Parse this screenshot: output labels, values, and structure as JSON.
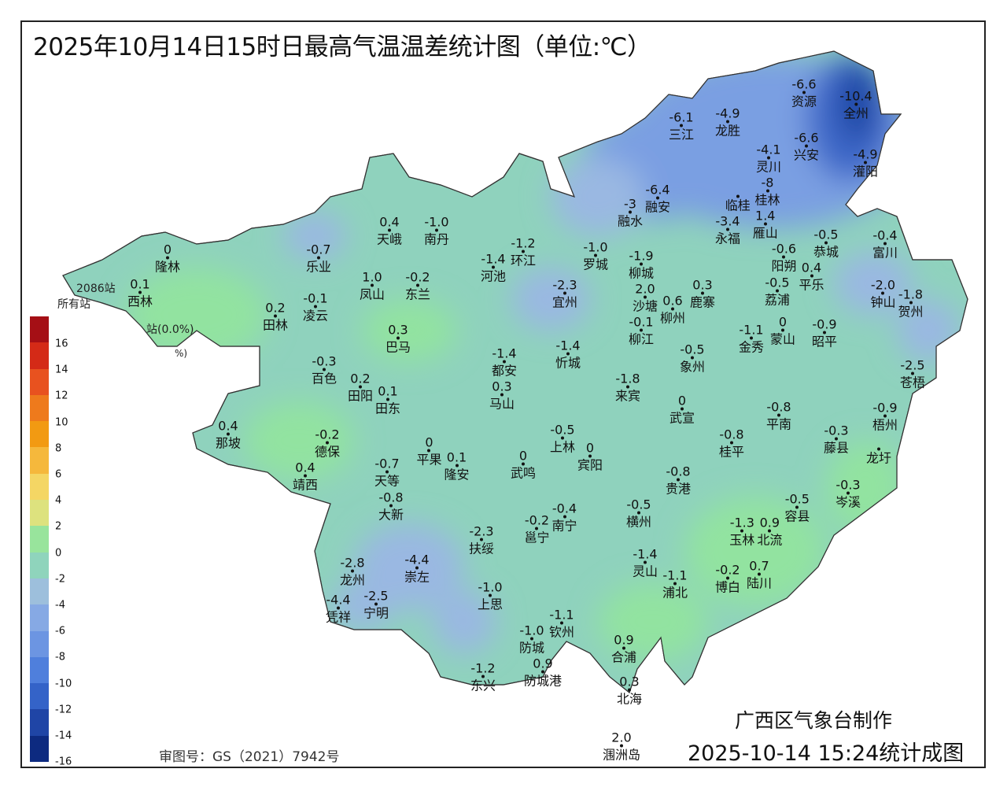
{
  "title": "2025年10月14日15时日最高气温温差统计图（单位:℃）",
  "maker": "广西区气象台制作",
  "stamp": "2025-10-14 15:24统计成图",
  "approval": "审图号：GS（2021）7942号",
  "stats_fragments": [
    "2086站",
    "所有站",
    "站(0.0%)",
    "%)"
  ],
  "legend": {
    "ticks": [
      "16",
      "14",
      "12",
      "10",
      "8",
      "6",
      "4",
      "2",
      "0",
      "-2",
      "-4",
      "-6",
      "-8",
      "-10",
      "-12",
      "-14",
      "-16"
    ],
    "colors": [
      "#a50f15",
      "#d42a17",
      "#e8521f",
      "#ee7a1c",
      "#f29a12",
      "#f5b83c",
      "#f4d664",
      "#dde27e",
      "#98e49c",
      "#8fd4bc",
      "#9dbfdc",
      "#86a9e4",
      "#6c95e2",
      "#4f7fdc",
      "#3463c8",
      "#1f45a6",
      "#0d2a80"
    ]
  },
  "map_colors": {
    "base": "#8fd2bd",
    "green": "#92e3a0",
    "light_blue": "#9ab8e2",
    "blue": "#7a9fe2",
    "deep_blue": "#3d67c8",
    "darkest": "#1f46a4"
  },
  "stations": [
    {
      "name": "资源",
      "value": "-6.6"
    },
    {
      "name": "全州",
      "value": "-10.4"
    },
    {
      "name": "三江",
      "value": "-6.1"
    },
    {
      "name": "龙胜",
      "value": "-4.9"
    },
    {
      "name": "兴安",
      "value": "-6.6"
    },
    {
      "name": "灌阳",
      "value": "-4.9"
    },
    {
      "name": "灵川",
      "value": "-4.1"
    },
    {
      "name": "桂林",
      "value": "-8"
    },
    {
      "name": "临桂",
      "value": ""
    },
    {
      "name": "雁山",
      "value": "1.4"
    },
    {
      "name": "融安",
      "value": "-6.4"
    },
    {
      "name": "融水",
      "value": "-3"
    },
    {
      "name": "永福",
      "value": "-3.4"
    },
    {
      "name": "富川",
      "value": "-0.4"
    },
    {
      "name": "阳朔",
      "value": "-0.6"
    },
    {
      "name": "恭城",
      "value": "-0.5"
    },
    {
      "name": "平乐",
      "value": "0.4"
    },
    {
      "name": "隆林",
      "value": "0"
    },
    {
      "name": "天峨",
      "value": "0.4"
    },
    {
      "name": "南丹",
      "value": "-1.0"
    },
    {
      "name": "环江",
      "value": "-1.2"
    },
    {
      "name": "河池",
      "value": "-1.4"
    },
    {
      "name": "罗城",
      "value": "-1.0"
    },
    {
      "name": "乐业",
      "value": "-0.7"
    },
    {
      "name": "凤山",
      "value": "1.0"
    },
    {
      "name": "东兰",
      "value": "-0.2"
    },
    {
      "name": "宜州",
      "value": "-2.3"
    },
    {
      "name": "柳城",
      "value": "-1.9"
    },
    {
      "name": "沙塘",
      "value": "2.0"
    },
    {
      "name": "鹿寨",
      "value": "0.3"
    },
    {
      "name": "钟山",
      "value": "-2.0"
    },
    {
      "name": "贺州",
      "value": "-1.8"
    },
    {
      "name": "荔浦",
      "value": "-0.5"
    },
    {
      "name": "西林",
      "value": "0.1"
    },
    {
      "name": "田林",
      "value": "0.2"
    },
    {
      "name": "凌云",
      "value": "-0.1"
    },
    {
      "name": "柳州",
      "value": "0.6"
    },
    {
      "name": "柳江",
      "value": "-0.1"
    },
    {
      "name": "金秀",
      "value": "-1.1"
    },
    {
      "name": "蒙山",
      "value": "0"
    },
    {
      "name": "昭平",
      "value": "-0.9"
    },
    {
      "name": "巴马",
      "value": "0.3"
    },
    {
      "name": "象州",
      "value": "-0.5"
    },
    {
      "name": "都安",
      "value": "-1.4"
    },
    {
      "name": "忻城",
      "value": "-1.4"
    },
    {
      "name": "苍梧",
      "value": "-2.5"
    },
    {
      "name": "百色",
      "value": "-0.3"
    },
    {
      "name": "马山",
      "value": "0.3"
    },
    {
      "name": "来宾",
      "value": "-1.8"
    },
    {
      "name": "田阳",
      "value": "0.2"
    },
    {
      "name": "田东",
      "value": "0.1"
    },
    {
      "name": "武宣",
      "value": "0"
    },
    {
      "name": "平南",
      "value": "-0.8"
    },
    {
      "name": "那坡",
      "value": "0.4"
    },
    {
      "name": "德保",
      "value": "-0.2"
    },
    {
      "name": "上林",
      "value": "-0.5"
    },
    {
      "name": "藤县",
      "value": "-0.3"
    },
    {
      "name": "梧州",
      "value": "-0.9"
    },
    {
      "name": "龙圩",
      "value": ""
    },
    {
      "name": "桂平",
      "value": "-0.8"
    },
    {
      "name": "平果",
      "value": "0"
    },
    {
      "name": "隆安",
      "value": "0.1"
    },
    {
      "name": "武鸣",
      "value": "0"
    },
    {
      "name": "宾阳",
      "value": "0"
    },
    {
      "name": "靖西",
      "value": "0.4"
    },
    {
      "name": "天等",
      "value": "-0.7"
    },
    {
      "name": "贵港",
      "value": "-0.8"
    },
    {
      "name": "岑溪",
      "value": "-0.3"
    },
    {
      "name": "大新",
      "value": "-0.8"
    },
    {
      "name": "横州",
      "value": "-0.5"
    },
    {
      "name": "容县",
      "value": "-0.5"
    },
    {
      "name": "南宁",
      "value": "-0.4"
    },
    {
      "name": "邕宁",
      "value": "-0.2"
    },
    {
      "name": "扶绥",
      "value": "-2.3"
    },
    {
      "name": "玉林",
      "value": "-1.3"
    },
    {
      "name": "北流",
      "value": "0.9"
    },
    {
      "name": "崇左",
      "value": "-4.4"
    },
    {
      "name": "龙州",
      "value": "-2.8"
    },
    {
      "name": "灵山",
      "value": "-1.4"
    },
    {
      "name": "博白",
      "value": "-0.2"
    },
    {
      "name": "陆川",
      "value": "0.7"
    },
    {
      "name": "宁明",
      "value": "-2.5"
    },
    {
      "name": "凭祥",
      "value": "-4.4"
    },
    {
      "name": "上思",
      "value": "-1.0"
    },
    {
      "name": "浦北",
      "value": "-1.1"
    },
    {
      "name": "钦州",
      "value": "-1.1"
    },
    {
      "name": "防城",
      "value": "-1.0"
    },
    {
      "name": "合浦",
      "value": "0.9"
    },
    {
      "name": "东兴",
      "value": "-1.2"
    },
    {
      "name": "防城港",
      "value": "0.9"
    },
    {
      "name": "北海",
      "value": "0.3"
    },
    {
      "name": "涠洲岛",
      "value": "2.0"
    }
  ]
}
